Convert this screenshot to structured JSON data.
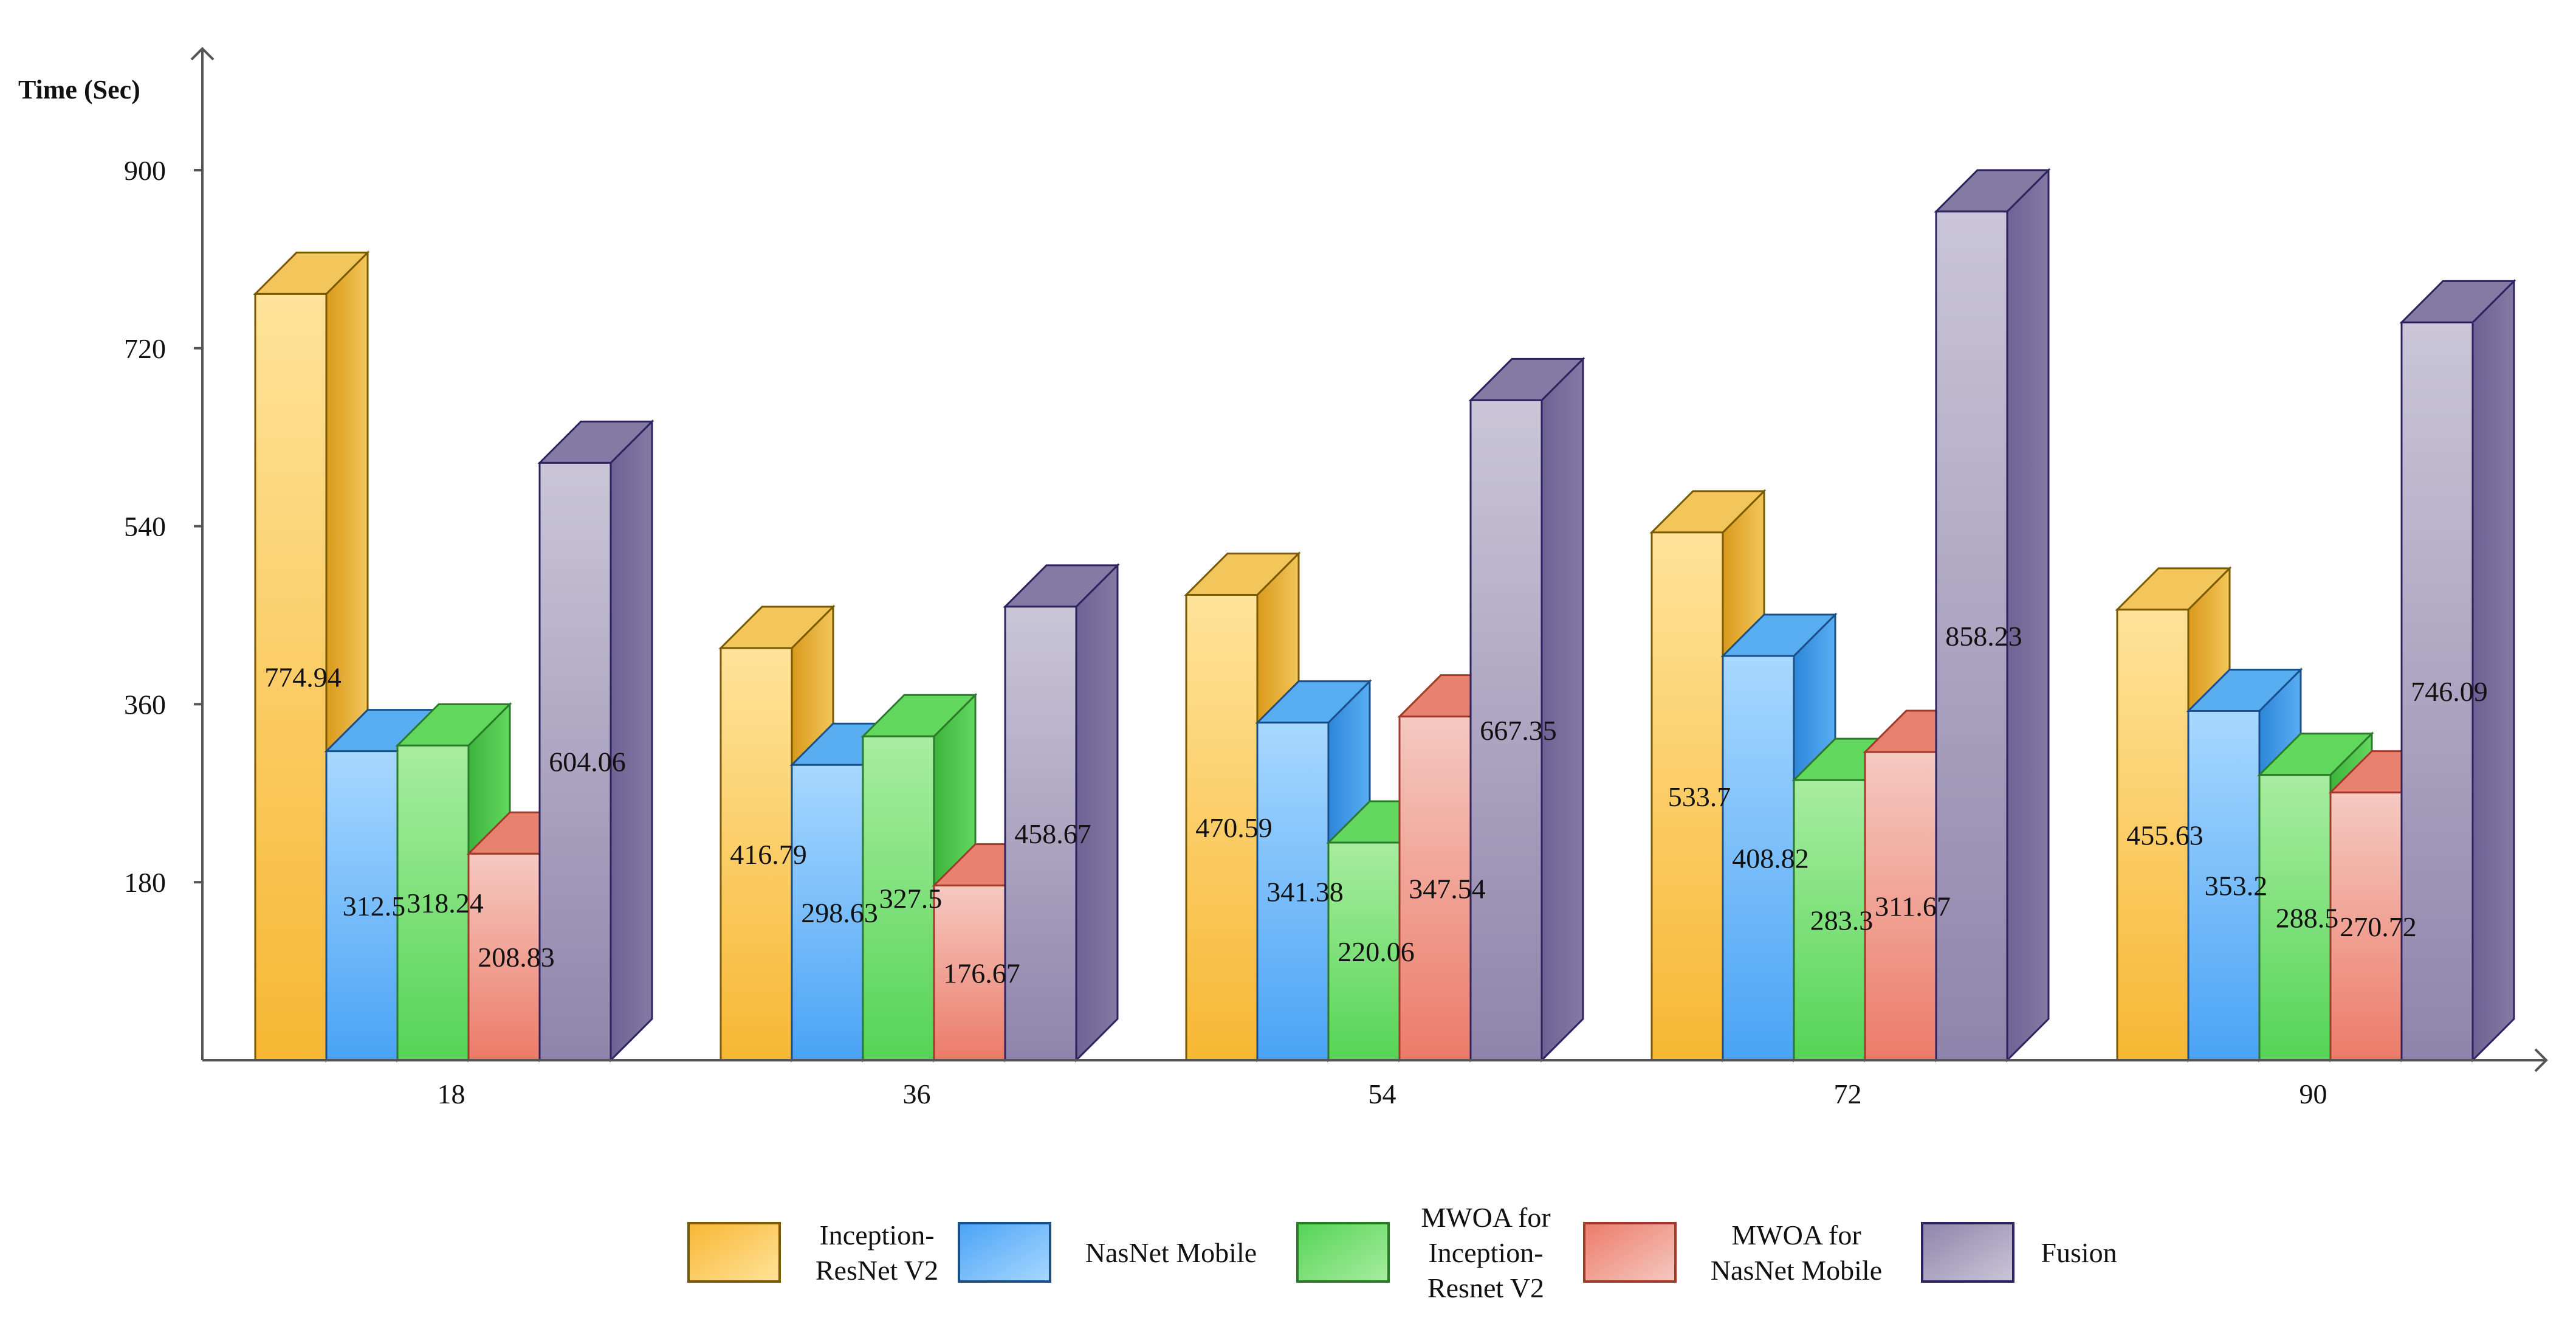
{
  "chart_data": {
    "type": "bar",
    "ylabel": "Time (Sec)",
    "xlabel": "",
    "categories": [
      "18",
      "36",
      "54",
      "72",
      "90"
    ],
    "yticks": [
      "180",
      "360",
      "540",
      "720",
      "900"
    ],
    "ylim": [
      0,
      1000
    ],
    "series": [
      {
        "name": "Inception-ResNet V2",
        "legend_lines": [
          "Inception-",
          "ResNet V2"
        ],
        "color": "#f7b733",
        "light": "#ffe39a",
        "top": "#f2c65a",
        "side": "#d99a1c",
        "edge": "#7a5a00",
        "values": [
          774.94,
          416.79,
          470.59,
          533.71,
          455.63
        ],
        "labels": [
          "774.94",
          "416.79",
          "470.59",
          "533.7",
          "455.63"
        ]
      },
      {
        "name": "NasNet Mobile",
        "legend_lines": [
          "NasNet Mobile"
        ],
        "color": "#4aa3f5",
        "light": "#a8d8ff",
        "top": "#59aef2",
        "side": "#2e86da",
        "edge": "#1a4f8a",
        "values": [
          312.5,
          298.63,
          341.38,
          408.82,
          353.2
        ],
        "labels": [
          "312.5",
          "298.63",
          "341.38",
          "408.82",
          "353.2"
        ]
      },
      {
        "name": "MWOA for Inception-Resnet V2",
        "legend_lines": [
          "MWOA for",
          "Inception-",
          "Resnet V2"
        ],
        "color": "#55d456",
        "light": "#a8eda0",
        "top": "#63d85f",
        "side": "#3cb43c",
        "edge": "#2a7a2a",
        "values": [
          318.24,
          327.5,
          220.06,
          283.3,
          288.5
        ],
        "labels": [
          "318.24",
          "327.5",
          "220.06",
          "283.3",
          "288.5"
        ]
      },
      {
        "name": "MWOA for NasNet Mobile",
        "legend_lines": [
          "MWOA for",
          "NasNet Mobile"
        ],
        "color": "#ec7b68",
        "light": "#f5c9c1",
        "top": "#e8816e",
        "side": "#cf5a48",
        "edge": "#a03a2a",
        "values": [
          208.83,
          176.67,
          347.54,
          311.67,
          270.72
        ],
        "labels": [
          "208.83",
          "176.67",
          "347.54",
          "311.67",
          "270.72"
        ]
      },
      {
        "name": "Fusion",
        "legend_lines": [
          "Fusion"
        ],
        "color": "#8f84ab",
        "light": "#cac6d8",
        "top": "#857aa3",
        "side": "#6e6294",
        "edge": "#2c2360",
        "values": [
          604.06,
          458.67,
          667.35,
          858.23,
          746.09
        ],
        "labels": [
          "604.06",
          "458.67",
          "667.35",
          "858.23",
          "746.09"
        ]
      }
    ]
  }
}
